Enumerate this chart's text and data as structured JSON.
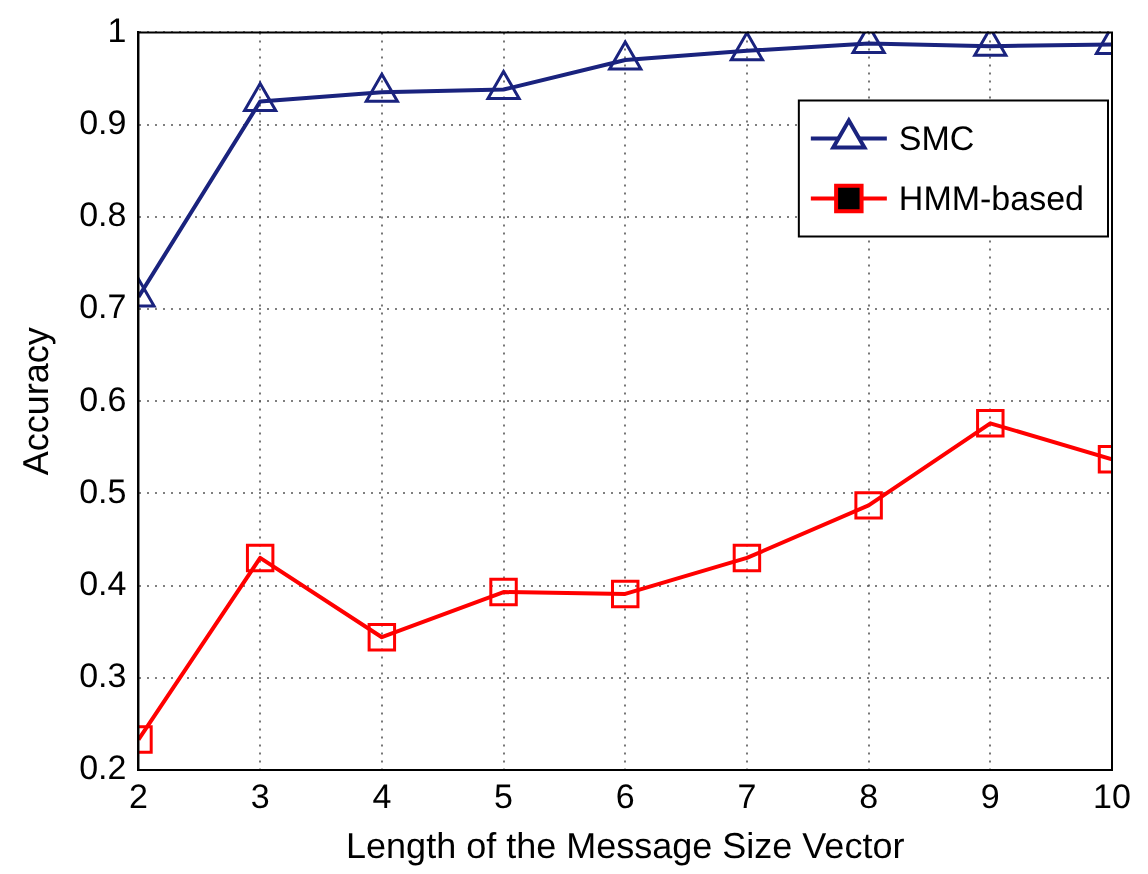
{
  "chart_data": {
    "type": "line",
    "xlabel": "Length of the Message Size Vector",
    "ylabel": "Accuracy",
    "x": [
      2,
      3,
      4,
      5,
      6,
      7,
      8,
      9,
      10
    ],
    "xlim": [
      2,
      10
    ],
    "xticks": [
      2,
      3,
      4,
      5,
      6,
      7,
      8,
      9,
      10
    ],
    "ylim": [
      0.2,
      1
    ],
    "yticks": [
      0.2,
      0.3,
      0.4,
      0.5,
      0.6,
      0.7,
      0.8,
      0.9,
      1
    ],
    "grid": true,
    "legend": "top right",
    "series": [
      {
        "name": "SMC",
        "color": "#1a237e",
        "marker": "triangle",
        "values": [
          0.713,
          0.925,
          0.935,
          0.938,
          0.97,
          0.98,
          0.988,
          0.985,
          0.987
        ]
      },
      {
        "name": "HMM-based",
        "color": "#ff0000",
        "marker": "square",
        "values": [
          0.233,
          0.43,
          0.344,
          0.393,
          0.391,
          0.43,
          0.487,
          0.576,
          0.537
        ]
      }
    ]
  }
}
